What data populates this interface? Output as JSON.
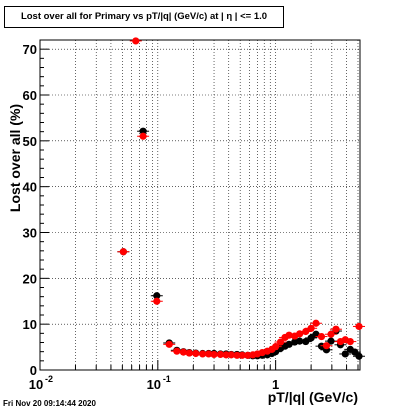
{
  "header": {
    "title": "Lost over all for Primary vs pT/|q| (GeV/c) at |  η | <= 1.0"
  },
  "footer": {
    "timestamp": "Fri Nov 20 09:14:44 2020"
  },
  "chart_data": {
    "type": "scatter",
    "title": "Lost over all for Primary vs pT/|q| (GeV/c) at |  η | <= 1.0",
    "xlabel": "pT/|q| (GeV/c)",
    "ylabel": "Lost over all (%)",
    "xscale": "log",
    "xlim": [
      0.01,
      5.2
    ],
    "ylim": [
      0,
      72
    ],
    "grid": true,
    "x_ticks": [
      {
        "value": 0.01,
        "label": "10",
        "exp": "-2"
      },
      {
        "value": 0.1,
        "label": "10",
        "exp": "-1"
      },
      {
        "value": 1,
        "label": "1",
        "exp": ""
      }
    ],
    "y_ticks": [
      0,
      10,
      20,
      30,
      40,
      50,
      60,
      70
    ],
    "colors": {
      "series_a": "#000000",
      "series_b": "#ff0000"
    },
    "series": [
      {
        "color": "#000000",
        "points": [
          {
            "x": 0.051,
            "y": 25.8
          },
          {
            "x": 0.075,
            "y": 52.1
          },
          {
            "x": 0.098,
            "y": 16.2
          },
          {
            "x": 0.125,
            "y": 5.9
          },
          {
            "x": 0.145,
            "y": 4.3
          },
          {
            "x": 0.165,
            "y": 4.0
          },
          {
            "x": 0.185,
            "y": 3.8
          },
          {
            "x": 0.21,
            "y": 3.7
          },
          {
            "x": 0.24,
            "y": 3.6
          },
          {
            "x": 0.27,
            "y": 3.6
          },
          {
            "x": 0.3,
            "y": 3.6
          },
          {
            "x": 0.34,
            "y": 3.5
          },
          {
            "x": 0.38,
            "y": 3.5
          },
          {
            "x": 0.42,
            "y": 3.4
          },
          {
            "x": 0.47,
            "y": 3.4
          },
          {
            "x": 0.52,
            "y": 3.3
          },
          {
            "x": 0.58,
            "y": 3.2
          },
          {
            "x": 0.64,
            "y": 3.1
          },
          {
            "x": 0.7,
            "y": 3.1
          },
          {
            "x": 0.77,
            "y": 3.2
          },
          {
            "x": 0.85,
            "y": 3.3
          },
          {
            "x": 0.93,
            "y": 3.6
          },
          {
            "x": 1.0,
            "y": 4.0
          },
          {
            "x": 1.1,
            "y": 4.7
          },
          {
            "x": 1.2,
            "y": 5.2
          },
          {
            "x": 1.3,
            "y": 5.6
          },
          {
            "x": 1.45,
            "y": 6.1
          },
          {
            "x": 1.6,
            "y": 6.3
          },
          {
            "x": 1.8,
            "y": 6.2
          },
          {
            "x": 2.0,
            "y": 7.0
          },
          {
            "x": 2.2,
            "y": 7.8
          },
          {
            "x": 2.45,
            "y": 5.2
          },
          {
            "x": 2.7,
            "y": 4.4
          },
          {
            "x": 2.95,
            "y": 6.3
          },
          {
            "x": 3.25,
            "y": 8.5
          },
          {
            "x": 3.55,
            "y": 5.5
          },
          {
            "x": 3.9,
            "y": 3.5
          },
          {
            "x": 4.3,
            "y": 4.5
          },
          {
            "x": 4.7,
            "y": 3.9
          },
          {
            "x": 5.1,
            "y": 3.0
          }
        ]
      },
      {
        "color": "#ff0000",
        "points": [
          {
            "x": 0.051,
            "y": 25.8
          },
          {
            "x": 0.065,
            "y": 71.8
          },
          {
            "x": 0.075,
            "y": 51.0
          },
          {
            "x": 0.098,
            "y": 15.0
          },
          {
            "x": 0.125,
            "y": 5.6
          },
          {
            "x": 0.145,
            "y": 4.1
          },
          {
            "x": 0.165,
            "y": 3.9
          },
          {
            "x": 0.185,
            "y": 3.7
          },
          {
            "x": 0.21,
            "y": 3.6
          },
          {
            "x": 0.24,
            "y": 3.5
          },
          {
            "x": 0.27,
            "y": 3.5
          },
          {
            "x": 0.3,
            "y": 3.4
          },
          {
            "x": 0.34,
            "y": 3.4
          },
          {
            "x": 0.38,
            "y": 3.3
          },
          {
            "x": 0.42,
            "y": 3.3
          },
          {
            "x": 0.47,
            "y": 3.2
          },
          {
            "x": 0.52,
            "y": 3.2
          },
          {
            "x": 0.58,
            "y": 3.2
          },
          {
            "x": 0.64,
            "y": 3.3
          },
          {
            "x": 0.7,
            "y": 3.5
          },
          {
            "x": 0.77,
            "y": 3.8
          },
          {
            "x": 0.85,
            "y": 4.1
          },
          {
            "x": 0.93,
            "y": 4.5
          },
          {
            "x": 1.0,
            "y": 5.1
          },
          {
            "x": 1.1,
            "y": 6.1
          },
          {
            "x": 1.2,
            "y": 7.1
          },
          {
            "x": 1.3,
            "y": 7.6
          },
          {
            "x": 1.45,
            "y": 7.4
          },
          {
            "x": 1.6,
            "y": 7.9
          },
          {
            "x": 1.8,
            "y": 8.4
          },
          {
            "x": 2.0,
            "y": 9.1
          },
          {
            "x": 2.2,
            "y": 10.2
          },
          {
            "x": 2.45,
            "y": 7.3
          },
          {
            "x": 2.7,
            "y": 5.3
          },
          {
            "x": 2.95,
            "y": 7.8
          },
          {
            "x": 3.25,
            "y": 8.9
          },
          {
            "x": 3.55,
            "y": 6.2
          },
          {
            "x": 3.9,
            "y": 6.6
          },
          {
            "x": 4.3,
            "y": 6.2
          },
          {
            "x": 5.1,
            "y": 9.5
          }
        ]
      }
    ]
  }
}
